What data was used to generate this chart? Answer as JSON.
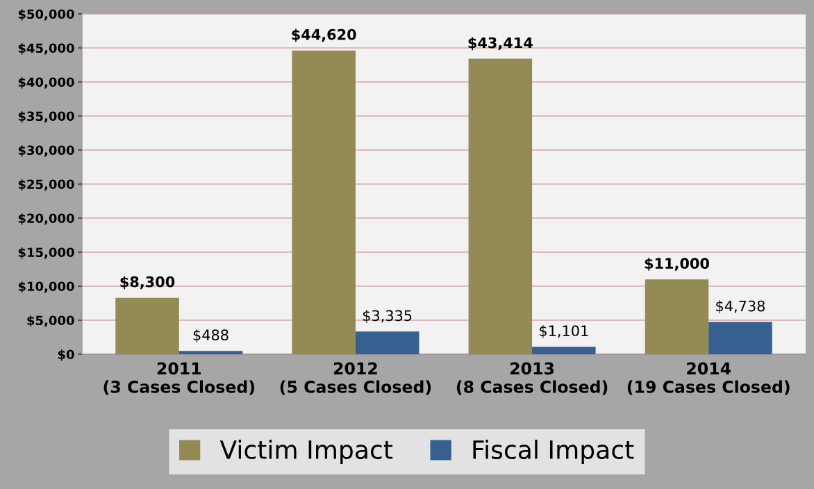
{
  "chart_data": {
    "type": "bar",
    "categories": [
      "2011\n(3 Cases Closed)",
      "2012\n(5 Cases Closed)",
      "2013\n(8 Cases Closed)",
      "2014\n(19 Cases Closed)"
    ],
    "series": [
      {
        "name": "Victim Impact",
        "color": "#948a54",
        "values": [
          8300,
          44620,
          43414,
          11000
        ],
        "value_labels": [
          "$8,300",
          "$44,620",
          "$43,414",
          "$11,000"
        ]
      },
      {
        "name": "Fiscal Impact",
        "color": "#36608f",
        "values": [
          488,
          3335,
          1101,
          4738
        ],
        "value_labels": [
          "$488",
          "$3,335",
          "$1,101",
          "$4,738"
        ]
      }
    ],
    "ylim": [
      0,
      50000
    ],
    "yticks": [
      {
        "value": 0,
        "label": "$0"
      },
      {
        "value": 5000,
        "label": "$5,000"
      },
      {
        "value": 10000,
        "label": "$10,000"
      },
      {
        "value": 15000,
        "label": "$15,000"
      },
      {
        "value": 20000,
        "label": "$20,000"
      },
      {
        "value": 25000,
        "label": "$25,000"
      },
      {
        "value": 30000,
        "label": "$30,000"
      },
      {
        "value": 35000,
        "label": "$35,000"
      },
      {
        "value": 40000,
        "label": "$40,000"
      },
      {
        "value": 45000,
        "label": "$45,000"
      },
      {
        "value": 50000,
        "label": "$50,000"
      }
    ],
    "grid": "y",
    "legend": "bottom"
  }
}
